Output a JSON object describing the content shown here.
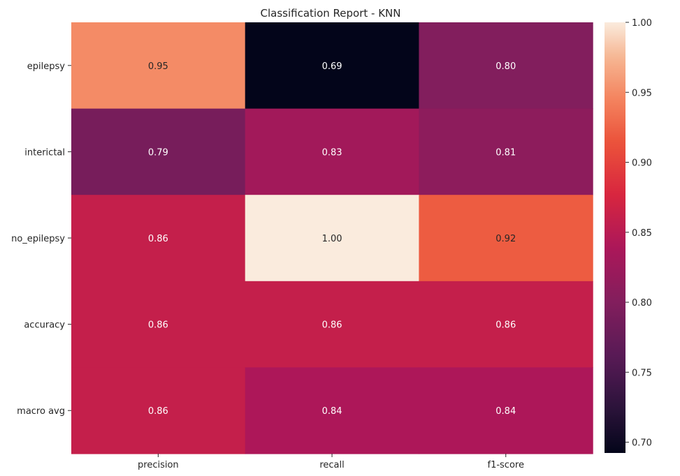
{
  "chart_data": {
    "type": "heatmap",
    "title": "Classification Report - KNN",
    "rows": [
      "epilepsy",
      "interictal",
      "no_epilepsy",
      "accuracy",
      "macro avg"
    ],
    "columns": [
      "precision",
      "recall",
      "f1-score"
    ],
    "values": [
      [
        0.95,
        0.69,
        0.8
      ],
      [
        0.79,
        0.83,
        0.81
      ],
      [
        0.86,
        1.0,
        0.92
      ],
      [
        0.86,
        0.86,
        0.86
      ],
      [
        0.86,
        0.84,
        0.84
      ]
    ],
    "value_labels": [
      [
        "0.95",
        "0.69",
        "0.80"
      ],
      [
        "0.79",
        "0.83",
        "0.81"
      ],
      [
        "0.86",
        "1.00",
        "0.92"
      ],
      [
        "0.86",
        "0.86",
        "0.86"
      ],
      [
        "0.86",
        "0.84",
        "0.84"
      ]
    ],
    "colorbar": {
      "range": [
        0.6923,
        1.0
      ],
      "ticks": [
        0.7,
        0.75,
        0.8,
        0.85,
        0.9,
        0.95,
        1.0
      ],
      "tick_labels": [
        "0.70",
        "0.75",
        "0.80",
        "0.85",
        "0.90",
        "0.95",
        "1.00"
      ],
      "colormap": "rocket"
    }
  }
}
